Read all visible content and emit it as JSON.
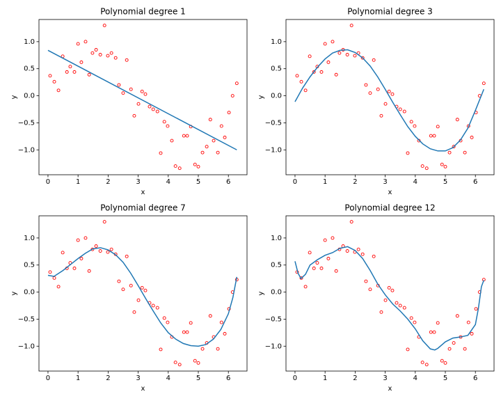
{
  "chart_data": [
    {
      "type": "line",
      "title": "Polynomial degree 1",
      "xlabel": "x",
      "ylabel": "y",
      "xlim": [
        -0.3,
        6.62
      ],
      "ylim": [
        -1.46,
        1.41
      ],
      "xticks": [
        0,
        1,
        2,
        3,
        4,
        5,
        6
      ],
      "yticks": [
        {
          "value": -1,
          "label": "−1.0"
        },
        {
          "value": -0.5,
          "label": "−0.5"
        },
        {
          "value": 0,
          "label": "0.0"
        },
        {
          "value": 0.5,
          "label": "0.5"
        },
        {
          "value": 1,
          "label": "1.0"
        }
      ],
      "series": [
        {
          "type": "scatter",
          "color": "#ff0000",
          "x": [
            0.07,
            0.21,
            0.35,
            0.49,
            0.63,
            0.74,
            0.88,
            1.0,
            1.11,
            1.25,
            1.37,
            1.48,
            1.6,
            1.74,
            1.88,
            1.99,
            2.11,
            2.25,
            2.36,
            2.5,
            2.62,
            2.76,
            2.87,
            3.01,
            3.13,
            3.24,
            3.38,
            3.5,
            3.64,
            3.75,
            3.87,
            3.98,
            4.12,
            4.24,
            4.38,
            4.52,
            4.63,
            4.75,
            4.89,
            5.0,
            5.14,
            5.28,
            5.4,
            5.51,
            5.65,
            5.77,
            5.88,
            6.02,
            6.14,
            6.28
          ],
          "values": [
            0.37,
            0.26,
            0.1,
            0.73,
            0.44,
            0.54,
            0.44,
            0.96,
            0.62,
            1.0,
            0.39,
            0.79,
            0.85,
            0.76,
            1.3,
            0.74,
            0.79,
            0.7,
            0.2,
            0.05,
            0.66,
            0.12,
            -0.37,
            -0.15,
            0.08,
            0.03,
            -0.2,
            -0.25,
            -0.29,
            -1.06,
            -0.48,
            -0.56,
            -0.83,
            -1.3,
            -1.34,
            -0.74,
            -0.74,
            -0.57,
            -1.27,
            -1.31,
            -1.05,
            -0.94,
            -0.44,
            -0.83,
            -1.05,
            -0.56,
            -0.77,
            -0.31,
            0.0,
            0.23
          ]
        },
        {
          "type": "line",
          "color": "#1f77b4",
          "x": [
            0,
            6.28
          ],
          "values": [
            0.84,
            -1.0
          ]
        }
      ]
    },
    {
      "type": "line",
      "title": "Polynomial degree 3",
      "xlabel": "x",
      "ylabel": "y",
      "xlim": [
        -0.3,
        6.62
      ],
      "ylim": [
        -1.46,
        1.41
      ],
      "xticks": [
        0,
        1,
        2,
        3,
        4,
        5,
        6
      ],
      "yticks": [
        {
          "value": -1,
          "label": "−1.0"
        },
        {
          "value": -0.5,
          "label": "−0.5"
        },
        {
          "value": 0,
          "label": "0.0"
        },
        {
          "value": 0.5,
          "label": "0.5"
        },
        {
          "value": 1,
          "label": "1.0"
        }
      ],
      "series": [
        {
          "type": "scatter",
          "color": "#ff0000",
          "x": [
            0.07,
            0.21,
            0.35,
            0.49,
            0.63,
            0.74,
            0.88,
            1.0,
            1.11,
            1.25,
            1.37,
            1.48,
            1.6,
            1.74,
            1.88,
            1.99,
            2.11,
            2.25,
            2.36,
            2.5,
            2.62,
            2.76,
            2.87,
            3.01,
            3.13,
            3.24,
            3.38,
            3.5,
            3.64,
            3.75,
            3.87,
            3.98,
            4.12,
            4.24,
            4.38,
            4.52,
            4.63,
            4.75,
            4.89,
            5.0,
            5.14,
            5.28,
            5.4,
            5.51,
            5.65,
            5.77,
            5.88,
            6.02,
            6.14,
            6.28
          ],
          "values": [
            0.37,
            0.26,
            0.1,
            0.73,
            0.44,
            0.54,
            0.44,
            0.96,
            0.62,
            1.0,
            0.39,
            0.79,
            0.85,
            0.76,
            1.3,
            0.74,
            0.79,
            0.7,
            0.2,
            0.05,
            0.66,
            0.12,
            -0.37,
            -0.15,
            0.08,
            0.03,
            -0.2,
            -0.25,
            -0.29,
            -1.06,
            -0.48,
            -0.56,
            -0.83,
            -1.3,
            -1.34,
            -0.74,
            -0.74,
            -0.57,
            -1.27,
            -1.31,
            -1.05,
            -0.94,
            -0.44,
            -0.83,
            -1.05,
            -0.56,
            -0.77,
            -0.31,
            0.0,
            0.23
          ]
        },
        {
          "type": "line",
          "color": "#1f77b4",
          "x": [
            0,
            0.25,
            0.5,
            0.75,
            1.0,
            1.25,
            1.5,
            1.75,
            2.0,
            2.25,
            2.5,
            2.75,
            3.0,
            3.25,
            3.5,
            3.75,
            4.0,
            4.25,
            4.5,
            4.75,
            5.0,
            5.25,
            5.5,
            5.75,
            6.0,
            6.28
          ],
          "values": [
            -0.11,
            0.14,
            0.35,
            0.53,
            0.68,
            0.79,
            0.84,
            0.85,
            0.8,
            0.7,
            0.55,
            0.35,
            0.12,
            -0.12,
            -0.35,
            -0.57,
            -0.75,
            -0.89,
            -0.98,
            -1.02,
            -1.02,
            -0.96,
            -0.82,
            -0.6,
            -0.27,
            0.12
          ]
        }
      ]
    },
    {
      "type": "line",
      "title": "Polynomial degree 7",
      "xlabel": "x",
      "ylabel": "y",
      "xlim": [
        -0.3,
        6.62
      ],
      "ylim": [
        -1.46,
        1.41
      ],
      "xticks": [
        0,
        1,
        2,
        3,
        4,
        5,
        6
      ],
      "yticks": [
        {
          "value": -1,
          "label": "−1.0"
        },
        {
          "value": -0.5,
          "label": "−0.5"
        },
        {
          "value": 0,
          "label": "0.0"
        },
        {
          "value": 0.5,
          "label": "0.5"
        },
        {
          "value": 1,
          "label": "1.0"
        }
      ],
      "series": [
        {
          "type": "scatter",
          "color": "#ff0000",
          "x": [
            0.07,
            0.21,
            0.35,
            0.49,
            0.63,
            0.74,
            0.88,
            1.0,
            1.11,
            1.25,
            1.37,
            1.48,
            1.6,
            1.74,
            1.88,
            1.99,
            2.11,
            2.25,
            2.36,
            2.5,
            2.62,
            2.76,
            2.87,
            3.01,
            3.13,
            3.24,
            3.38,
            3.5,
            3.64,
            3.75,
            3.87,
            3.98,
            4.12,
            4.24,
            4.38,
            4.52,
            4.63,
            4.75,
            4.89,
            5.0,
            5.14,
            5.28,
            5.4,
            5.51,
            5.65,
            5.77,
            5.88,
            6.02,
            6.14,
            6.28
          ],
          "values": [
            0.37,
            0.26,
            0.1,
            0.73,
            0.44,
            0.54,
            0.44,
            0.96,
            0.62,
            1.0,
            0.39,
            0.79,
            0.85,
            0.76,
            1.3,
            0.74,
            0.79,
            0.7,
            0.2,
            0.05,
            0.66,
            0.12,
            -0.37,
            -0.15,
            0.08,
            0.03,
            -0.2,
            -0.25,
            -0.29,
            -1.06,
            -0.48,
            -0.56,
            -0.83,
            -1.3,
            -1.34,
            -0.74,
            -0.74,
            -0.57,
            -1.27,
            -1.31,
            -1.05,
            -0.94,
            -0.44,
            -0.83,
            -1.05,
            -0.56,
            -0.77,
            -0.31,
            0.0,
            0.23
          ]
        },
        {
          "type": "line",
          "color": "#1f77b4",
          "x": [
            0,
            0.2,
            0.5,
            0.75,
            1.0,
            1.25,
            1.5,
            1.75,
            2.0,
            2.25,
            2.5,
            2.75,
            3.0,
            3.25,
            3.5,
            3.75,
            4.0,
            4.25,
            4.5,
            4.75,
            5.0,
            5.25,
            5.5,
            5.75,
            6.0,
            6.15,
            6.28
          ],
          "values": [
            0.31,
            0.29,
            0.4,
            0.51,
            0.62,
            0.72,
            0.8,
            0.82,
            0.78,
            0.69,
            0.55,
            0.35,
            0.12,
            -0.12,
            -0.35,
            -0.57,
            -0.75,
            -0.87,
            -0.95,
            -0.99,
            -1.0,
            -0.97,
            -0.87,
            -0.69,
            -0.4,
            -0.1,
            0.28
          ]
        }
      ]
    },
    {
      "type": "line",
      "title": "Polynomial degree 12",
      "xlabel": "x",
      "ylabel": "y",
      "xlim": [
        -0.3,
        6.62
      ],
      "ylim": [
        -1.46,
        1.41
      ],
      "xticks": [
        0,
        1,
        2,
        3,
        4,
        5,
        6
      ],
      "yticks": [
        {
          "value": -1,
          "label": "−1.0"
        },
        {
          "value": -0.5,
          "label": "−0.5"
        },
        {
          "value": 0,
          "label": "0.0"
        },
        {
          "value": 0.5,
          "label": "0.5"
        },
        {
          "value": 1,
          "label": "1.0"
        }
      ],
      "series": [
        {
          "type": "scatter",
          "color": "#ff0000",
          "x": [
            0.07,
            0.21,
            0.35,
            0.49,
            0.63,
            0.74,
            0.88,
            1.0,
            1.11,
            1.25,
            1.37,
            1.48,
            1.6,
            1.74,
            1.88,
            1.99,
            2.11,
            2.25,
            2.36,
            2.5,
            2.62,
            2.76,
            2.87,
            3.01,
            3.13,
            3.24,
            3.38,
            3.5,
            3.64,
            3.75,
            3.87,
            3.98,
            4.12,
            4.24,
            4.38,
            4.52,
            4.63,
            4.75,
            4.89,
            5.0,
            5.14,
            5.28,
            5.4,
            5.51,
            5.65,
            5.77,
            5.88,
            6.02,
            6.14,
            6.28
          ],
          "values": [
            0.37,
            0.26,
            0.1,
            0.73,
            0.44,
            0.54,
            0.44,
            0.96,
            0.62,
            1.0,
            0.39,
            0.79,
            0.85,
            0.76,
            1.3,
            0.74,
            0.79,
            0.7,
            0.2,
            0.05,
            0.66,
            0.12,
            -0.37,
            -0.15,
            0.08,
            0.03,
            -0.2,
            -0.25,
            -0.29,
            -1.06,
            -0.48,
            -0.56,
            -0.83,
            -1.3,
            -1.34,
            -0.74,
            -0.74,
            -0.57,
            -1.27,
            -1.31,
            -1.05,
            -0.94,
            -0.44,
            -0.83,
            -1.05,
            -0.56,
            -0.77,
            -0.31,
            0.0,
            0.23
          ]
        },
        {
          "type": "line",
          "color": "#1f77b4",
          "x": [
            0,
            0.1,
            0.2,
            0.35,
            0.5,
            0.75,
            1.0,
            1.25,
            1.5,
            1.75,
            2.0,
            2.25,
            2.5,
            2.75,
            3.0,
            3.25,
            3.5,
            3.75,
            4.0,
            4.25,
            4.5,
            4.65,
            4.75,
            5.0,
            5.25,
            5.5,
            5.75,
            6.0,
            6.1,
            6.2,
            6.28
          ],
          "values": [
            0.57,
            0.35,
            0.25,
            0.33,
            0.5,
            0.6,
            0.68,
            0.73,
            0.81,
            0.84,
            0.77,
            0.62,
            0.4,
            0.15,
            -0.05,
            -0.22,
            -0.35,
            -0.5,
            -0.68,
            -0.9,
            -1.05,
            -1.07,
            -1.04,
            -0.92,
            -0.85,
            -0.83,
            -0.8,
            -0.6,
            -0.3,
            0.1,
            0.22
          ]
        }
      ]
    }
  ]
}
